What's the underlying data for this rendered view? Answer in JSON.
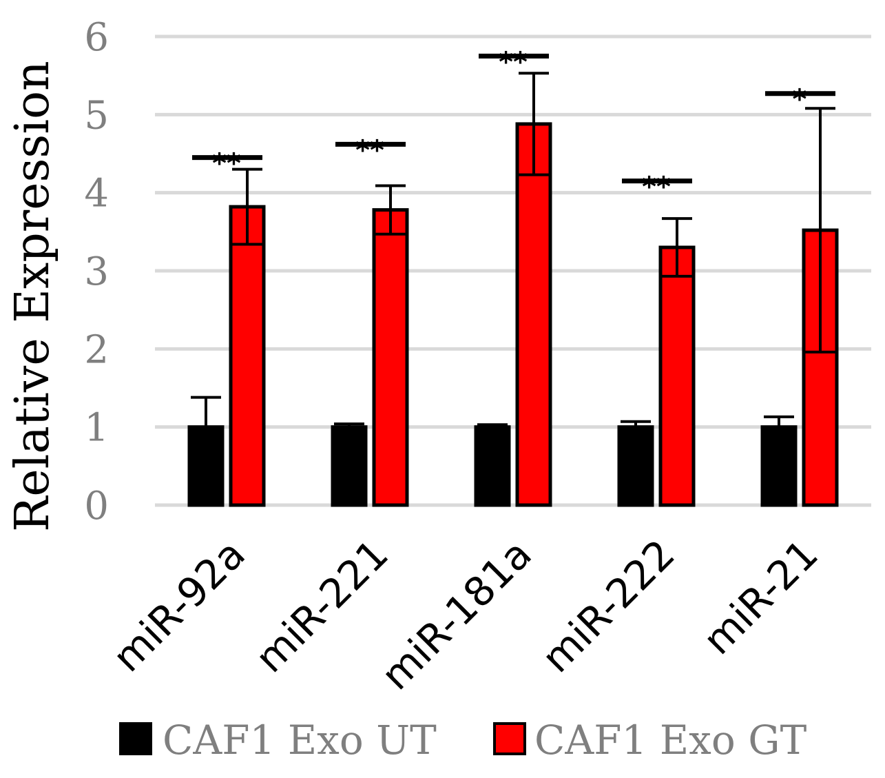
{
  "chart_data": {
    "type": "bar",
    "title": "",
    "xlabel": "",
    "ylabel": "Relative Expression",
    "ylim": [
      0,
      6
    ],
    "yticks": [
      0,
      1,
      2,
      3,
      4,
      5,
      6
    ],
    "grid": true,
    "categories": [
      "miR-92a",
      "miR-221",
      "miR-181a",
      "miR-222",
      "miR-21"
    ],
    "series": [
      {
        "name": "CAF1 Exo UT",
        "color": "#000000",
        "values": [
          1.0,
          1.0,
          1.0,
          1.0,
          1.0
        ],
        "error": [
          0.38,
          0.04,
          0.03,
          0.07,
          0.13
        ]
      },
      {
        "name": "CAF1 Exo GT",
        "color": "#ff0000",
        "values": [
          3.82,
          3.78,
          4.88,
          3.3,
          3.52
        ],
        "error": [
          0.48,
          0.31,
          0.65,
          0.37,
          1.56
        ]
      }
    ],
    "significance": [
      {
        "category": "miR-92a",
        "label": "**",
        "level": 4.45
      },
      {
        "category": "miR-221",
        "label": "**",
        "level": 4.62
      },
      {
        "category": "miR-181a",
        "label": "**",
        "level": 5.75
      },
      {
        "category": "miR-222",
        "label": "**",
        "level": 4.15
      },
      {
        "category": "miR-21",
        "label": "*",
        "level": 5.27
      }
    ],
    "legend": {
      "position": "bottom",
      "entries": [
        "CAF1 Exo UT",
        "CAF1 Exo GT"
      ]
    }
  }
}
